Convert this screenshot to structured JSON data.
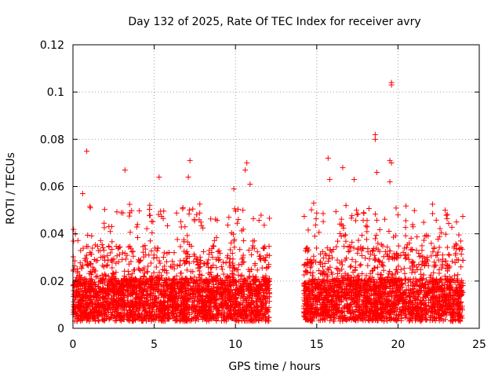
{
  "chart_data": {
    "type": "scatter",
    "title": "Day 132 of 2025, Rate Of TEC Index for receiver avry",
    "xlabel": "GPS time / hours",
    "ylabel": "ROTI / TECUs",
    "xlim": [
      0,
      25
    ],
    "ylim": [
      0,
      0.12
    ],
    "xticks": [
      "0",
      "5",
      "10",
      "15",
      "20",
      "25"
    ],
    "yticks": [
      "0",
      "0.02",
      "0.04",
      "0.06",
      "0.08",
      "0.1",
      "0.12"
    ],
    "grid": true,
    "marker": "+",
    "color": "#ff0000",
    "segments": [
      {
        "x_start": 0.0,
        "x_end": 12.1,
        "y_base_min": 0.003,
        "y_base_max": 0.035
      },
      {
        "x_start": 14.2,
        "x_end": 24.0,
        "y_base_min": 0.003,
        "y_base_max": 0.035
      }
    ],
    "notable_points": [
      {
        "x": 0.85,
        "y": 0.075
      },
      {
        "x": 0.6,
        "y": 0.057
      },
      {
        "x": 3.2,
        "y": 0.067
      },
      {
        "x": 5.3,
        "y": 0.064
      },
      {
        "x": 7.2,
        "y": 0.071
      },
      {
        "x": 7.1,
        "y": 0.064
      },
      {
        "x": 9.9,
        "y": 0.059
      },
      {
        "x": 10.7,
        "y": 0.07
      },
      {
        "x": 10.6,
        "y": 0.067
      },
      {
        "x": 10.9,
        "y": 0.061
      },
      {
        "x": 15.7,
        "y": 0.072
      },
      {
        "x": 15.8,
        "y": 0.063
      },
      {
        "x": 16.6,
        "y": 0.068
      },
      {
        "x": 17.3,
        "y": 0.063
      },
      {
        "x": 18.6,
        "y": 0.082
      },
      {
        "x": 18.6,
        "y": 0.08
      },
      {
        "x": 18.7,
        "y": 0.066
      },
      {
        "x": 19.5,
        "y": 0.071
      },
      {
        "x": 19.6,
        "y": 0.07
      },
      {
        "x": 19.6,
        "y": 0.104
      },
      {
        "x": 19.6,
        "y": 0.103
      },
      {
        "x": 19.5,
        "y": 0.062
      },
      {
        "x": 20.0,
        "y": 0.048
      },
      {
        "x": 22.9,
        "y": 0.05
      },
      {
        "x": 23.6,
        "y": 0.045
      }
    ]
  }
}
